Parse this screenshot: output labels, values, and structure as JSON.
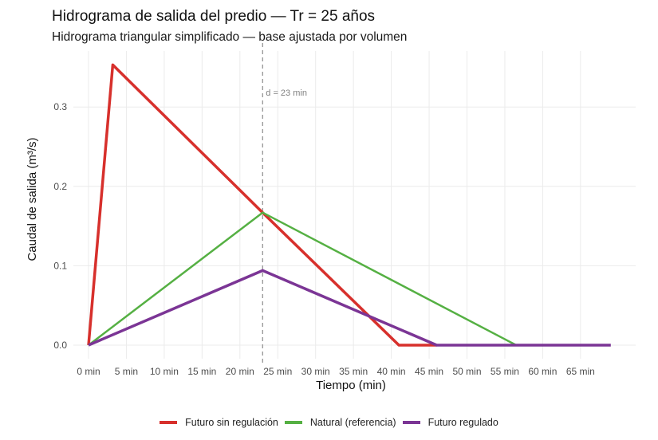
{
  "title": "Hidrograma de salida del predio — Tr = 25 años",
  "subtitle": "Hidrograma triangular simplificado — base ajustada por volumen",
  "chart_data": {
    "type": "line",
    "title": "Hidrograma de salida del predio — Tr = 25 años",
    "subtitle": "Hidrograma triangular simplificado — base ajustada por volumen",
    "xlabel": "Tiempo (min)",
    "ylabel": "Caudal de salida (m³/s)",
    "xlim": [
      -2,
      72
    ],
    "ylim": [
      -0.017,
      0.37
    ],
    "x_ticks": [
      0,
      5,
      10,
      15,
      20,
      25,
      30,
      35,
      40,
      45,
      50,
      55,
      60,
      65
    ],
    "x_tick_labels": [
      "0 min",
      "5 min",
      "10 min",
      "15 min",
      "20 min",
      "25 min",
      "30 min",
      "35 min",
      "40 min",
      "45 min",
      "50 min",
      "55 min",
      "60 min",
      "65 min"
    ],
    "y_ticks": [
      0.0,
      0.1,
      0.2,
      0.3
    ],
    "y_tick_labels": [
      "0.0",
      "0.1",
      "0.2",
      "0.3"
    ],
    "grid": true,
    "legend_position": "bottom",
    "annotations": [
      {
        "type": "vline",
        "x": 23,
        "style": "dashed",
        "color": "#8c8c8c",
        "label": "d = 23 min"
      }
    ],
    "series": [
      {
        "name": "Futuro sin regulación",
        "color": "#d7302c",
        "width": 3.5,
        "x": [
          0,
          3.2,
          23,
          41,
          46
        ],
        "y": [
          0.0,
          0.353,
          0.167,
          0.0,
          0.0
        ]
      },
      {
        "name": "Natural (referencia)",
        "color": "#55b043",
        "width": 2.5,
        "x": [
          0,
          23,
          56.5
        ],
        "y": [
          0.0,
          0.167,
          0.0
        ]
      },
      {
        "name": "Futuro regulado",
        "color": "#7b3595",
        "width": 3.5,
        "x": [
          0,
          23,
          46,
          69
        ],
        "y": [
          0.0,
          0.094,
          0.0,
          0.0
        ]
      }
    ]
  },
  "legend": {
    "items": [
      {
        "label": "Futuro sin regulación",
        "color": "#d7302c"
      },
      {
        "label": "Natural (referencia)",
        "color": "#55b043"
      },
      {
        "label": "Futuro regulado",
        "color": "#7b3595"
      }
    ]
  }
}
